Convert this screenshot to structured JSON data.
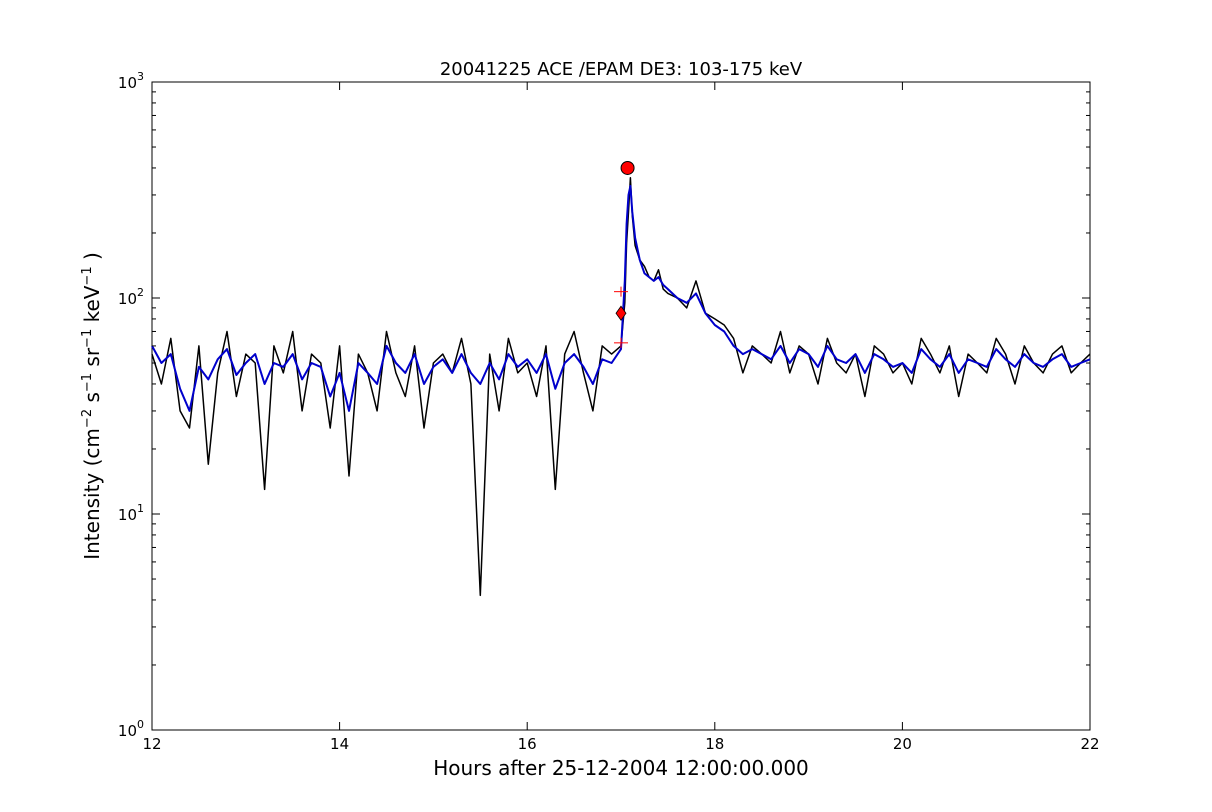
{
  "chart_data": {
    "type": "line",
    "title": "20041225 ACE /EPAM DE3: 103-175 keV",
    "xlabel": "Hours after 25-12-2004 12:00:00.000",
    "ylabel": {
      "prefix": "Intensity (cm",
      "exp1": "−2",
      "s": " s",
      "exp2": "−1",
      "sr": " sr",
      "exp3": "−1",
      "kev": " keV",
      "exp4": "−1",
      "suffix": " )"
    },
    "xlim": [
      12,
      22
    ],
    "ylim": [
      1,
      1000
    ],
    "yscale": "log",
    "grid": false,
    "x_ticks": [
      "12",
      "14",
      "16",
      "18",
      "20",
      "22"
    ],
    "x_tick_values": [
      12,
      14,
      16,
      18,
      20,
      22
    ],
    "y_ticks": [
      {
        "base": "10",
        "exp": "0",
        "value": 1
      },
      {
        "base": "10",
        "exp": "1",
        "value": 10
      },
      {
        "base": "10",
        "exp": "2",
        "value": 100
      },
      {
        "base": "10",
        "exp": "3",
        "value": 1000
      }
    ],
    "series": [
      {
        "color": "#000000",
        "x": [
          12.0,
          12.1,
          12.2,
          12.3,
          12.4,
          12.5,
          12.6,
          12.7,
          12.8,
          12.9,
          13.0,
          13.1,
          13.2,
          13.3,
          13.4,
          13.5,
          13.6,
          13.7,
          13.8,
          13.9,
          14.0,
          14.1,
          14.2,
          14.3,
          14.4,
          14.5,
          14.6,
          14.7,
          14.8,
          14.9,
          15.0,
          15.1,
          15.2,
          15.3,
          15.4,
          15.5,
          15.6,
          15.7,
          15.8,
          15.9,
          16.0,
          16.1,
          16.2,
          16.3,
          16.4,
          16.5,
          16.6,
          16.7,
          16.8,
          16.9,
          17.0,
          17.04,
          17.06,
          17.08,
          17.1,
          17.12,
          17.15,
          17.2,
          17.25,
          17.3,
          17.35,
          17.4,
          17.45,
          17.5,
          17.6,
          17.7,
          17.8,
          17.9,
          18.0,
          18.1,
          18.2,
          18.3,
          18.4,
          18.5,
          18.6,
          18.7,
          18.8,
          18.9,
          19.0,
          19.1,
          19.2,
          19.3,
          19.4,
          19.5,
          19.6,
          19.7,
          19.8,
          19.9,
          20.0,
          20.1,
          20.2,
          20.3,
          20.4,
          20.5,
          20.6,
          20.7,
          20.8,
          20.9,
          21.0,
          21.1,
          21.2,
          21.3,
          21.4,
          21.5,
          21.6,
          21.7,
          21.8,
          21.9,
          22.0
        ],
        "values": [
          55,
          40,
          65,
          30,
          25,
          60,
          17,
          45,
          70,
          35,
          55,
          50,
          13,
          60,
          45,
          70,
          30,
          55,
          50,
          25,
          60,
          15,
          55,
          45,
          30,
          70,
          45,
          35,
          60,
          25,
          50,
          55,
          45,
          65,
          40,
          4.2,
          55,
          30,
          65,
          45,
          50,
          35,
          60,
          13,
          55,
          70,
          45,
          30,
          60,
          55,
          60,
          95,
          180,
          250,
          360,
          240,
          175,
          150,
          140,
          125,
          120,
          135,
          110,
          105,
          100,
          90,
          120,
          85,
          80,
          75,
          65,
          45,
          60,
          55,
          50,
          70,
          45,
          60,
          55,
          40,
          65,
          50,
          45,
          55,
          35,
          60,
          55,
          45,
          50,
          40,
          65,
          55,
          45,
          60,
          35,
          55,
          50,
          45,
          65,
          55,
          40,
          60,
          50,
          45,
          55,
          60,
          45,
          50,
          55
        ],
        "line_width": 1.5
      },
      {
        "color": "#0000cc",
        "x": [
          12.0,
          12.1,
          12.2,
          12.3,
          12.4,
          12.5,
          12.6,
          12.7,
          12.8,
          12.9,
          13.0,
          13.1,
          13.2,
          13.3,
          13.4,
          13.5,
          13.6,
          13.7,
          13.8,
          13.9,
          14.0,
          14.1,
          14.2,
          14.3,
          14.4,
          14.5,
          14.6,
          14.7,
          14.8,
          14.9,
          15.0,
          15.1,
          15.2,
          15.3,
          15.4,
          15.5,
          15.6,
          15.7,
          15.8,
          15.9,
          16.0,
          16.1,
          16.2,
          16.3,
          16.4,
          16.5,
          16.6,
          16.7,
          16.8,
          16.9,
          17.0,
          17.04,
          17.06,
          17.08,
          17.1,
          17.12,
          17.15,
          17.2,
          17.25,
          17.3,
          17.35,
          17.4,
          17.45,
          17.5,
          17.6,
          17.7,
          17.8,
          17.9,
          18.0,
          18.1,
          18.2,
          18.3,
          18.4,
          18.5,
          18.6,
          18.7,
          18.8,
          18.9,
          19.0,
          19.1,
          19.2,
          19.3,
          19.4,
          19.5,
          19.6,
          19.7,
          19.8,
          19.9,
          20.0,
          20.1,
          20.2,
          20.3,
          20.4,
          20.5,
          20.6,
          20.7,
          20.8,
          20.9,
          21.0,
          21.1,
          21.2,
          21.3,
          21.4,
          21.5,
          21.6,
          21.7,
          21.8,
          21.9,
          22.0
        ],
        "values": [
          60,
          50,
          55,
          38,
          30,
          48,
          42,
          52,
          58,
          44,
          50,
          55,
          40,
          50,
          48,
          55,
          42,
          50,
          48,
          35,
          45,
          30,
          50,
          45,
          40,
          60,
          50,
          45,
          55,
          40,
          48,
          52,
          45,
          55,
          45,
          40,
          50,
          42,
          55,
          48,
          52,
          45,
          55,
          38,
          50,
          55,
          48,
          40,
          52,
          50,
          58,
          120,
          220,
          300,
          330,
          250,
          190,
          150,
          130,
          125,
          120,
          125,
          115,
          110,
          100,
          95,
          105,
          85,
          75,
          70,
          60,
          55,
          58,
          55,
          52,
          60,
          50,
          58,
          55,
          48,
          60,
          52,
          50,
          55,
          45,
          55,
          52,
          48,
          50,
          45,
          58,
          52,
          48,
          55,
          45,
          52,
          50,
          48,
          58,
          52,
          48,
          55,
          50,
          48,
          52,
          55,
          48,
          50,
          52
        ],
        "line_width": 2
      }
    ],
    "markers": [
      {
        "shape": "circle",
        "x": 17.07,
        "y": 400,
        "color": "#ff0000"
      },
      {
        "shape": "diamond",
        "x": 17.0,
        "y": 85,
        "color": "#ff0000"
      },
      {
        "shape": "plus",
        "x": 17.0,
        "y": 107,
        "color": "#ff0000"
      },
      {
        "shape": "plus",
        "x": 17.0,
        "y": 62,
        "color": "#ff0000"
      }
    ]
  }
}
